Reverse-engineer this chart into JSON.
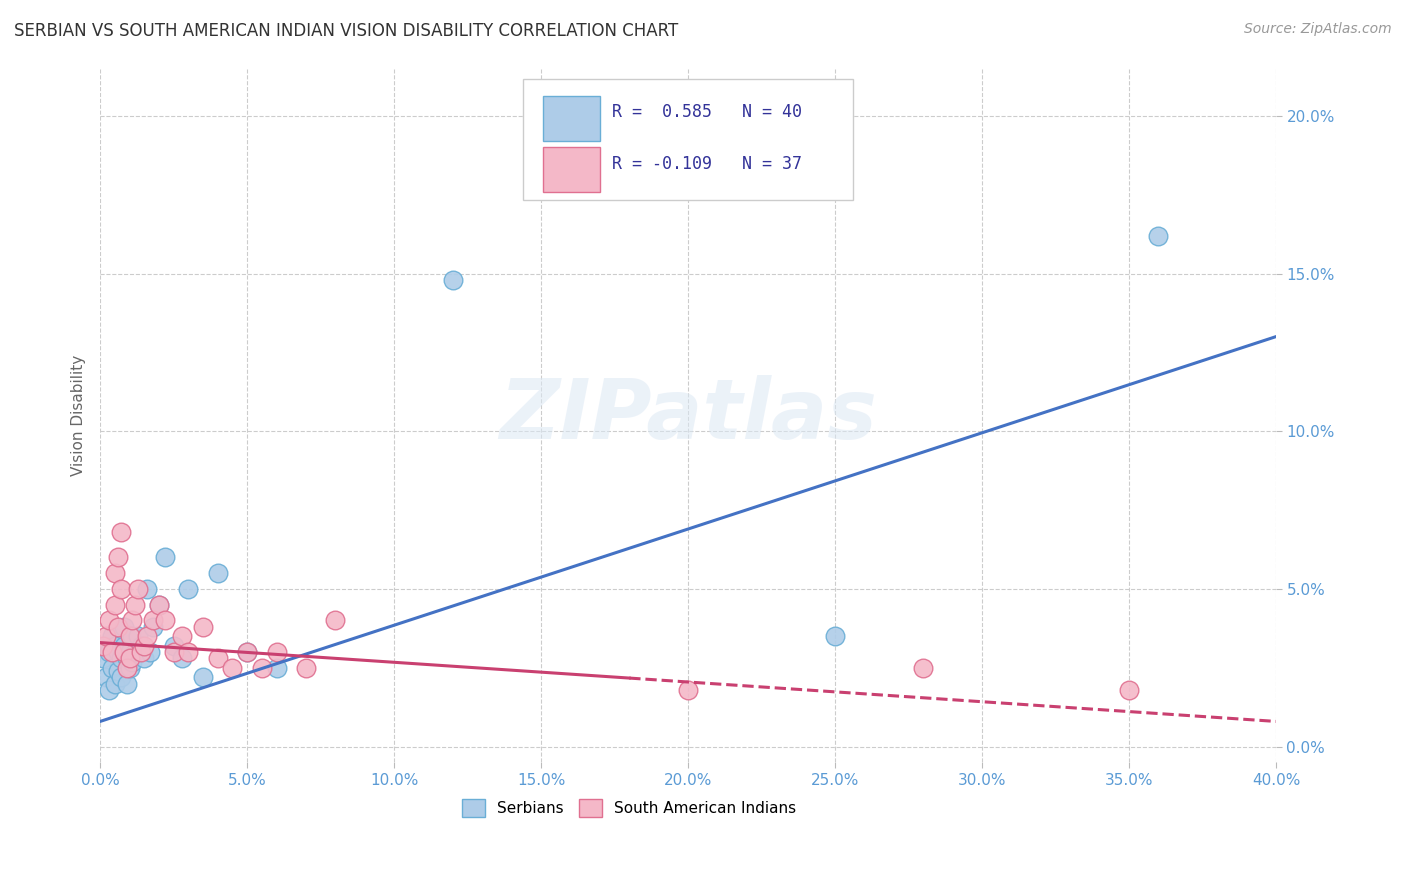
{
  "title": "SERBIAN VS SOUTH AMERICAN INDIAN VISION DISABILITY CORRELATION CHART",
  "source": "Source: ZipAtlas.com",
  "ylabel": "Vision Disability",
  "xlim": [
    0.0,
    0.4
  ],
  "ylim": [
    -0.005,
    0.215
  ],
  "xticks": [
    0.0,
    0.05,
    0.1,
    0.15,
    0.2,
    0.25,
    0.3,
    0.35,
    0.4
  ],
  "yticks": [
    0.0,
    0.05,
    0.1,
    0.15,
    0.2
  ],
  "background_color": "#ffffff",
  "grid_color": "#cccccc",
  "title_color": "#333333",
  "axis_color": "#5b9bd5",
  "legend_R_serbian": "0.585",
  "legend_N_serbian": "40",
  "legend_R_sai": "-0.109",
  "legend_N_sai": "37",
  "serbian_color": "#aecce8",
  "serbian_edge_color": "#6aaed6",
  "sai_color": "#f4b8c8",
  "sai_edge_color": "#e07090",
  "trendline_serbian_color": "#4472c4",
  "trendline_sai_color": "#c94070",
  "serbian_scatter_x": [
    0.001,
    0.002,
    0.002,
    0.003,
    0.003,
    0.004,
    0.004,
    0.005,
    0.005,
    0.006,
    0.006,
    0.007,
    0.007,
    0.008,
    0.008,
    0.009,
    0.009,
    0.01,
    0.01,
    0.011,
    0.011,
    0.012,
    0.013,
    0.014,
    0.015,
    0.016,
    0.017,
    0.018,
    0.02,
    0.022,
    0.025,
    0.028,
    0.03,
    0.035,
    0.04,
    0.05,
    0.06,
    0.12,
    0.25,
    0.36
  ],
  "serbian_scatter_y": [
    0.028,
    0.022,
    0.032,
    0.018,
    0.03,
    0.025,
    0.035,
    0.02,
    0.032,
    0.024,
    0.03,
    0.022,
    0.028,
    0.032,
    0.038,
    0.02,
    0.028,
    0.025,
    0.03,
    0.035,
    0.027,
    0.03,
    0.035,
    0.032,
    0.028,
    0.05,
    0.03,
    0.038,
    0.045,
    0.06,
    0.032,
    0.028,
    0.05,
    0.022,
    0.055,
    0.03,
    0.025,
    0.148,
    0.035,
    0.162
  ],
  "sai_scatter_x": [
    0.001,
    0.002,
    0.003,
    0.004,
    0.005,
    0.005,
    0.006,
    0.006,
    0.007,
    0.007,
    0.008,
    0.009,
    0.01,
    0.01,
    0.011,
    0.012,
    0.013,
    0.014,
    0.015,
    0.016,
    0.018,
    0.02,
    0.022,
    0.025,
    0.028,
    0.03,
    0.035,
    0.04,
    0.045,
    0.05,
    0.055,
    0.06,
    0.07,
    0.08,
    0.2,
    0.28,
    0.35
  ],
  "sai_scatter_y": [
    0.032,
    0.035,
    0.04,
    0.03,
    0.055,
    0.045,
    0.06,
    0.038,
    0.05,
    0.068,
    0.03,
    0.025,
    0.035,
    0.028,
    0.04,
    0.045,
    0.05,
    0.03,
    0.032,
    0.035,
    0.04,
    0.045,
    0.04,
    0.03,
    0.035,
    0.03,
    0.038,
    0.028,
    0.025,
    0.03,
    0.025,
    0.03,
    0.025,
    0.04,
    0.018,
    0.025,
    0.018
  ],
  "serbian_trendline_x": [
    0.0,
    0.4
  ],
  "serbian_trendline_y": [
    0.008,
    0.13
  ],
  "sai_trendline_x": [
    0.0,
    0.4
  ],
  "sai_trendline_y": [
    0.033,
    0.008
  ],
  "sai_trendline_dashed_start": 0.18
}
